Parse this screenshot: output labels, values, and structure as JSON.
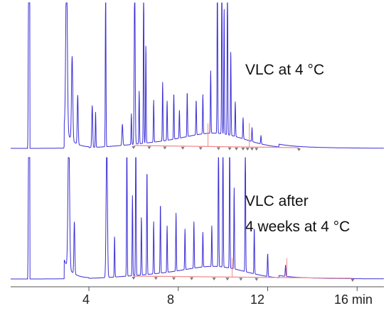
{
  "chart_data": {
    "type": "line",
    "title": "",
    "xlabel": "",
    "ylabel": "",
    "x_unit": "min",
    "xlim": [
      0.5,
      17.2
    ],
    "xticks": [
      4,
      8,
      12,
      16
    ],
    "tick_labels": [
      "4",
      "8",
      "12",
      "16 min"
    ],
    "grid": false,
    "colors": {
      "trace": "#3a2fd6",
      "baseline": "#f08a8a",
      "axis": "#555555",
      "marker": "#7a7a7a"
    },
    "series": [
      {
        "annotation": [
          "VLC at 4 °C"
        ],
        "baseline_start": 6.0,
        "baseline_end": 13.4,
        "peaks": [
          {
            "t": 1.3,
            "h": 1.05,
            "w": 0.02
          },
          {
            "t": 3.0,
            "h": 1.2,
            "w": 0.05
          },
          {
            "t": 3.25,
            "h": 0.6,
            "w": 0.04
          },
          {
            "t": 3.5,
            "h": 0.35,
            "w": 0.03
          },
          {
            "t": 4.15,
            "h": 0.3,
            "w": 0.03
          },
          {
            "t": 4.3,
            "h": 0.25,
            "w": 0.02
          },
          {
            "t": 4.75,
            "h": 1.2,
            "w": 0.02
          },
          {
            "t": 5.5,
            "h": 0.15,
            "w": 0.03
          },
          {
            "t": 5.9,
            "h": 0.22,
            "w": 0.02
          },
          {
            "t": 6.05,
            "h": 1.2,
            "w": 0.03
          },
          {
            "t": 6.25,
            "h": 0.38,
            "w": 0.02
          },
          {
            "t": 6.45,
            "h": 1.2,
            "w": 0.02
          },
          {
            "t": 6.55,
            "h": 0.7,
            "w": 0.02
          },
          {
            "t": 6.9,
            "h": 0.3,
            "w": 0.02
          },
          {
            "t": 7.3,
            "h": 0.42,
            "w": 0.02
          },
          {
            "t": 7.5,
            "h": 0.28,
            "w": 0.02
          },
          {
            "t": 7.8,
            "h": 0.33,
            "w": 0.02
          },
          {
            "t": 8.05,
            "h": 0.2,
            "w": 0.02
          },
          {
            "t": 8.4,
            "h": 0.32,
            "w": 0.02
          },
          {
            "t": 8.8,
            "h": 0.25,
            "w": 0.02
          },
          {
            "t": 9.1,
            "h": 0.28,
            "w": 0.02
          },
          {
            "t": 9.45,
            "h": 0.45,
            "w": 0.02
          },
          {
            "t": 9.75,
            "h": 1.2,
            "w": 0.02
          },
          {
            "t": 9.95,
            "h": 1.2,
            "w": 0.02
          },
          {
            "t": 10.05,
            "h": 0.9,
            "w": 0.02
          },
          {
            "t": 10.2,
            "h": 1.2,
            "w": 0.02
          },
          {
            "t": 10.35,
            "h": 0.6,
            "w": 0.02
          },
          {
            "t": 10.55,
            "h": 0.25,
            "w": 0.02
          },
          {
            "t": 10.9,
            "h": 0.15,
            "w": 0.02
          },
          {
            "t": 11.3,
            "h": 0.1,
            "w": 0.02
          },
          {
            "t": 11.7,
            "h": 0.06,
            "w": 0.02
          }
        ],
        "markers": [
          6.0,
          6.7,
          7.4,
          8.2,
          9.0,
          9.8,
          10.3,
          10.6,
          10.9,
          11.1,
          11.3,
          11.5,
          13.4
        ]
      },
      {
        "annotation": [
          "VLC after",
          "4 weeks at 4 °C"
        ],
        "baseline_start": 6.0,
        "baseline_end": 15.8,
        "peaks": [
          {
            "t": 1.3,
            "h": 1.05,
            "w": 0.02
          },
          {
            "t": 3.1,
            "h": 1.2,
            "w": 0.05
          },
          {
            "t": 3.35,
            "h": 0.45,
            "w": 0.03
          },
          {
            "t": 4.8,
            "h": 1.2,
            "w": 0.04
          },
          {
            "t": 5.15,
            "h": 0.35,
            "w": 0.02
          },
          {
            "t": 5.7,
            "h": 1.2,
            "w": 0.02
          },
          {
            "t": 5.95,
            "h": 0.7,
            "w": 0.02
          },
          {
            "t": 6.1,
            "h": 1.2,
            "w": 0.02
          },
          {
            "t": 6.35,
            "h": 0.5,
            "w": 0.02
          },
          {
            "t": 6.6,
            "h": 0.9,
            "w": 0.02
          },
          {
            "t": 6.9,
            "h": 0.45,
            "w": 0.02
          },
          {
            "t": 7.2,
            "h": 0.6,
            "w": 0.02
          },
          {
            "t": 7.5,
            "h": 0.4,
            "w": 0.02
          },
          {
            "t": 7.9,
            "h": 0.5,
            "w": 0.02
          },
          {
            "t": 8.3,
            "h": 0.35,
            "w": 0.02
          },
          {
            "t": 8.7,
            "h": 0.4,
            "w": 0.02
          },
          {
            "t": 9.1,
            "h": 0.3,
            "w": 0.02
          },
          {
            "t": 9.5,
            "h": 0.35,
            "w": 0.02
          },
          {
            "t": 9.8,
            "h": 1.2,
            "w": 0.02
          },
          {
            "t": 10.0,
            "h": 1.2,
            "w": 0.02
          },
          {
            "t": 10.3,
            "h": 1.2,
            "w": 0.02
          },
          {
            "t": 10.5,
            "h": 0.7,
            "w": 0.02
          },
          {
            "t": 11.0,
            "h": 1.2,
            "w": 0.02
          },
          {
            "t": 11.4,
            "h": 0.4,
            "w": 0.02
          },
          {
            "t": 12.0,
            "h": 0.2,
            "w": 0.02
          },
          {
            "t": 12.8,
            "h": 0.1,
            "w": 0.02
          }
        ],
        "markers": [
          6.0,
          7.0,
          7.8,
          8.6,
          9.6,
          10.2,
          10.8,
          11.5,
          15.8
        ]
      }
    ]
  }
}
